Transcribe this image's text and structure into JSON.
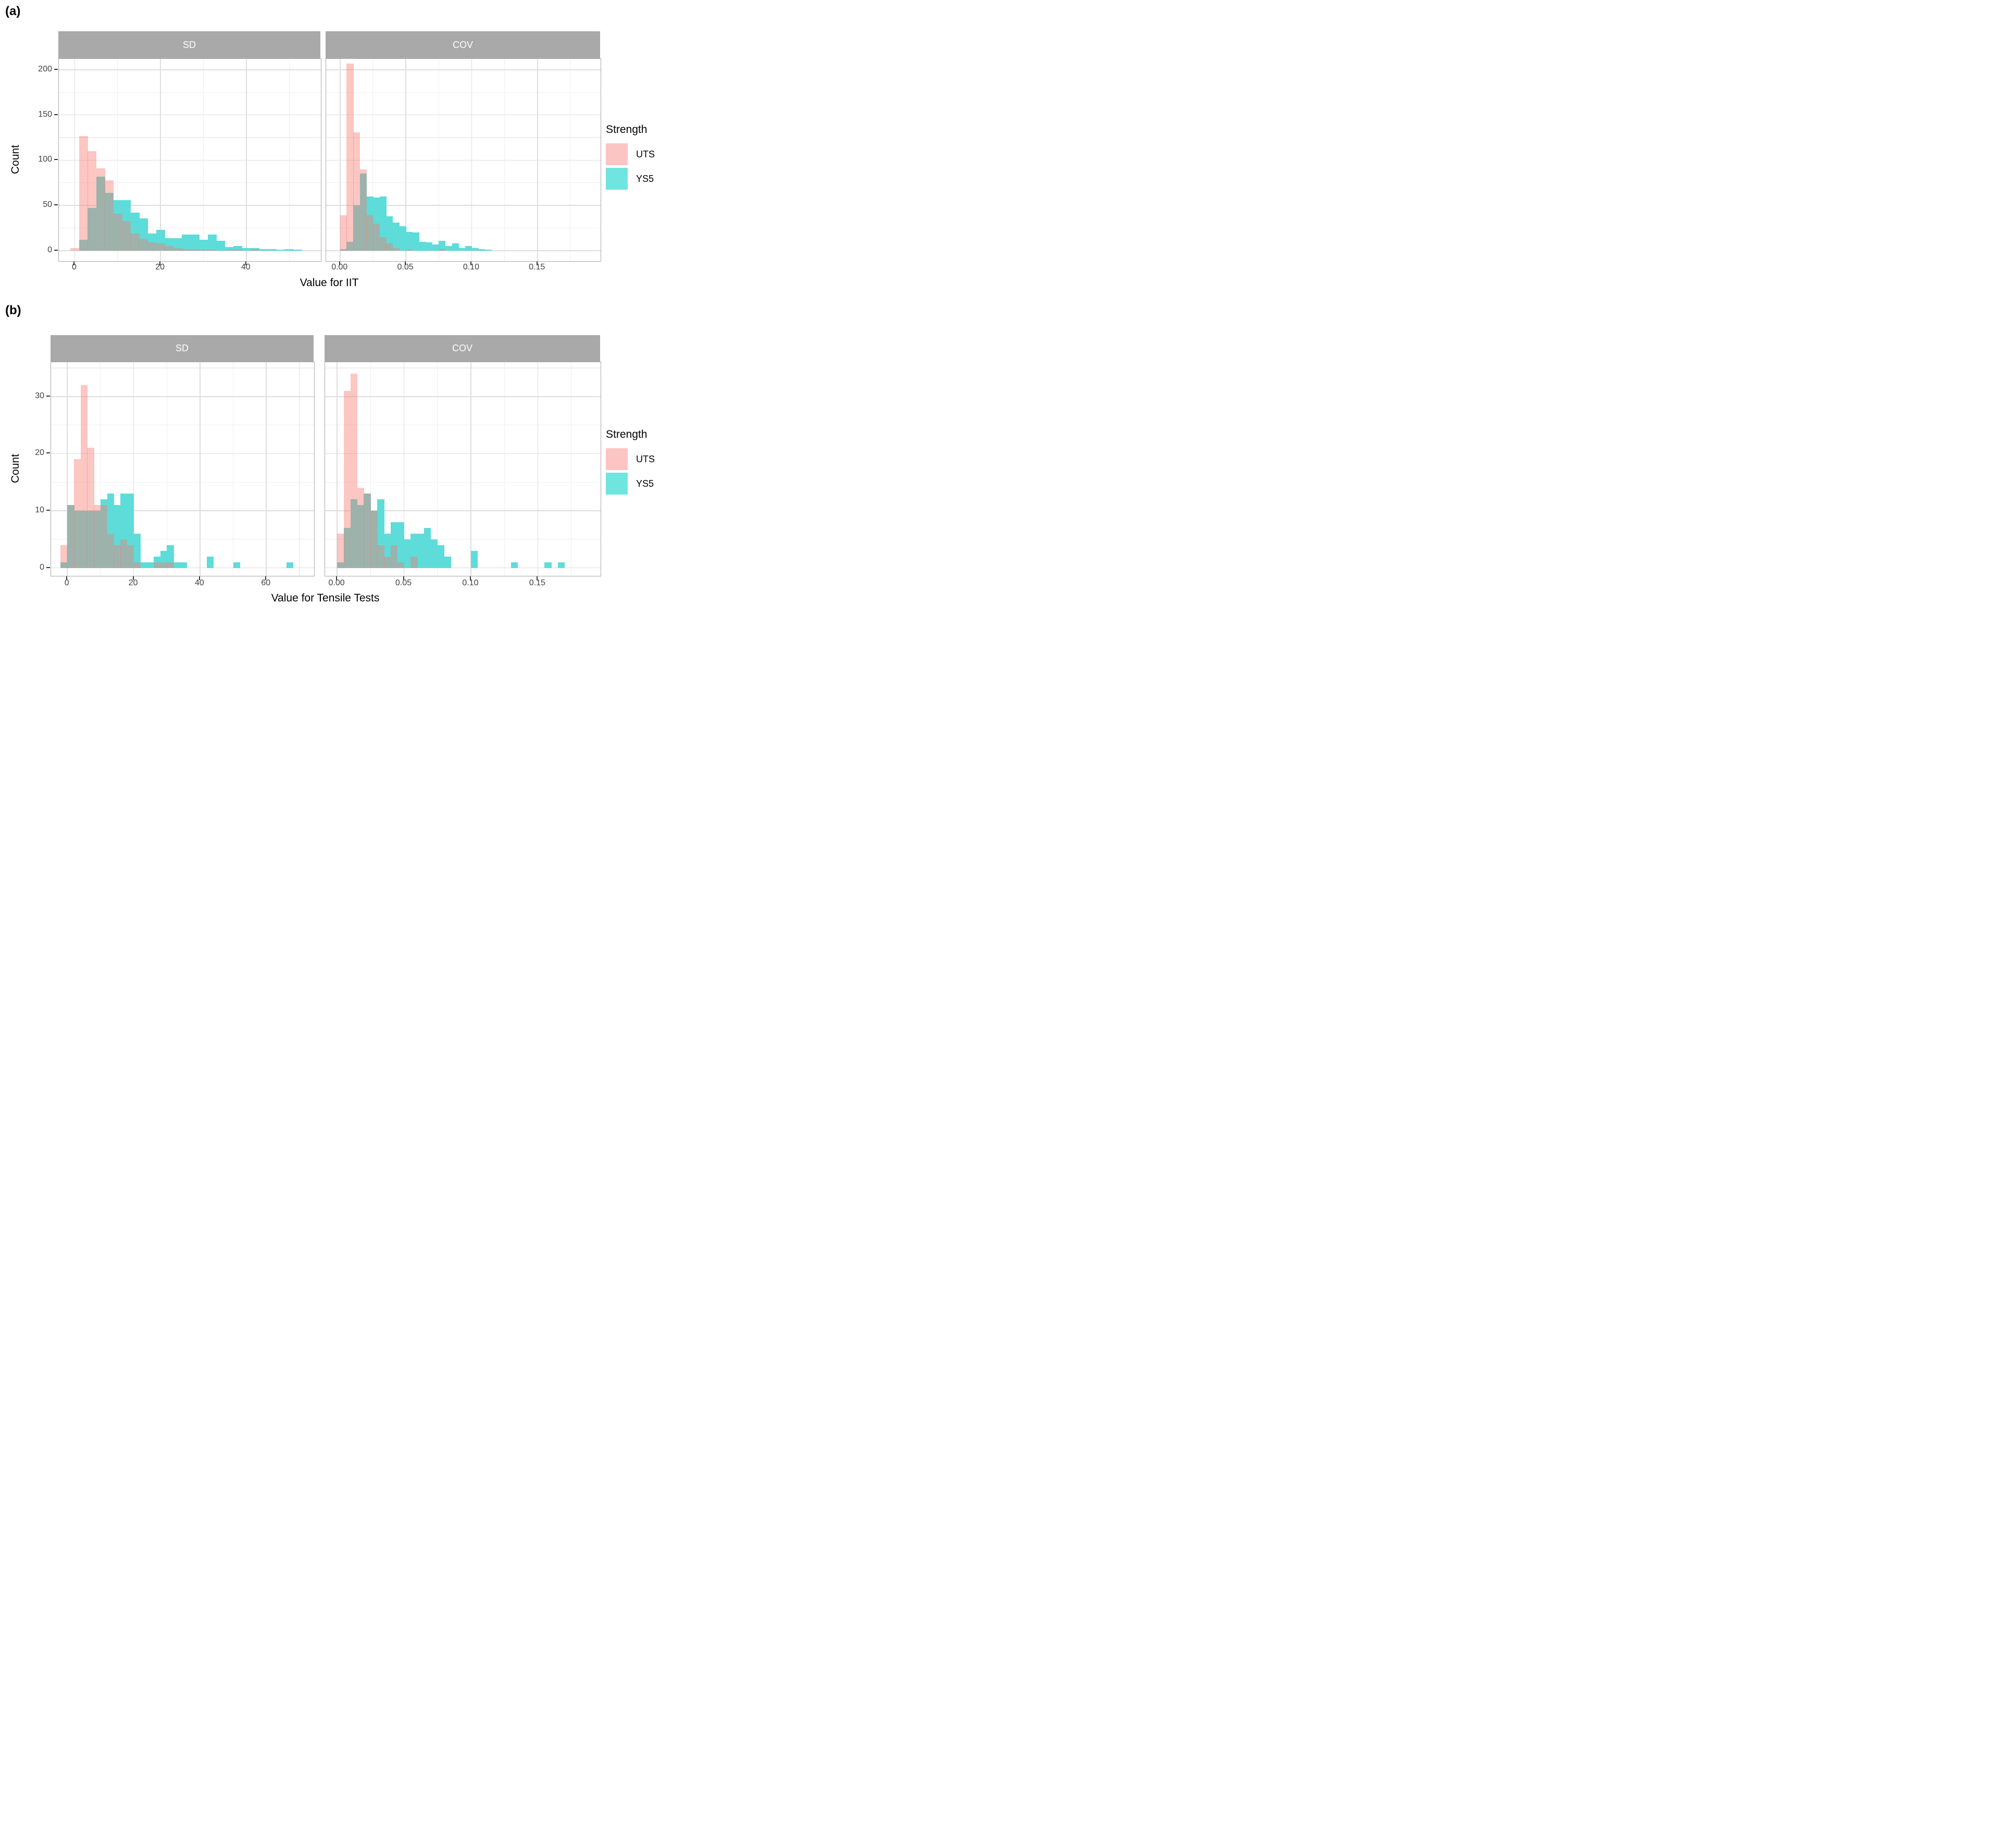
{
  "figure": {
    "sections": [
      {
        "label": "(a)"
      },
      {
        "label": "(b)"
      }
    ],
    "legend": {
      "title": "Strength",
      "items": [
        {
          "label": "UTS",
          "key_color": "#FBC5C3"
        },
        {
          "label": "YS5",
          "key_color": "#70E4DF"
        }
      ]
    },
    "colors": {
      "uts_fill": "rgba(248,118,109,0.42)",
      "ys5_fill": "#5EDCD9",
      "strip_bg": "#A9A9A9",
      "strip_text": "#FFFFFF",
      "grid_major": "#DEDEDE",
      "grid_minor": "#EFEFEF",
      "panel_border": "#A8A8A8",
      "axis_text": "#404040"
    }
  },
  "chart_data": [
    {
      "type": "histogram",
      "section": "a",
      "title": "",
      "xlabel": "Value for IIT",
      "ylabel": "Count",
      "legend_title": "Strength",
      "legend_position": "right",
      "grid": true,
      "ylim": [
        -11.5,
        212
      ],
      "yticks": [
        {
          "v": 0,
          "label": "0"
        },
        {
          "v": 50,
          "label": "50"
        },
        {
          "v": 100,
          "label": "100"
        },
        {
          "v": 150,
          "label": "150"
        },
        {
          "v": 200,
          "label": "200"
        }
      ],
      "yminor": [
        25,
        75,
        125,
        175
      ],
      "facets": [
        {
          "title": "SD",
          "xlim": [
            -3.7,
            57.4
          ],
          "bin_start": -1,
          "bin_width": 2,
          "xticks": [
            {
              "v": 0,
              "label": "0"
            },
            {
              "v": 20,
              "label": "20"
            },
            {
              "v": 40,
              "label": "40"
            }
          ],
          "xminor": [
            10,
            30,
            50
          ],
          "series": [
            {
              "name": "UTS",
              "counts": [
                3,
                127,
                110,
                91,
                78,
                41,
                33,
                19,
                13,
                9,
                8,
                5,
                3,
                2,
                2,
                1,
                1,
                0,
                1,
                1,
                0,
                2,
                0,
                0,
                0,
                0,
                0,
                0,
                0
              ]
            },
            {
              "name": "YS5",
              "counts": [
                0,
                12,
                47,
                82,
                64,
                56,
                56,
                42,
                36,
                19,
                23,
                14,
                14,
                18,
                18,
                12,
                18,
                11,
                4,
                5,
                3,
                3,
                2,
                2,
                1,
                2,
                1,
                0,
                0
              ]
            }
          ]
        },
        {
          "title": "COV",
          "xlim": [
            -0.0106,
            0.198
          ],
          "bin_start": 0,
          "bin_width": 0.005,
          "xticks": [
            {
              "v": 0,
              "label": "0.00"
            },
            {
              "v": 0.05,
              "label": "0.05"
            },
            {
              "v": 0.1,
              "label": "0.10"
            },
            {
              "v": 0.15,
              "label": "0.15"
            }
          ],
          "xminor": [
            0.025,
            0.075,
            0.125,
            0.175
          ],
          "series": [
            {
              "name": "UTS",
              "counts": [
                39,
                207,
                131,
                90,
                39,
                30,
                15,
                8,
                3,
                0,
                2,
                0,
                0,
                0,
                0,
                2,
                0,
                0,
                0,
                0,
                0,
                0,
                0,
                0
              ]
            },
            {
              "name": "YS5",
              "counts": [
                2,
                10,
                50,
                85,
                60,
                59,
                60,
                38,
                31,
                27,
                21,
                20,
                10,
                9,
                7,
                11,
                5,
                8,
                3,
                5,
                3,
                2,
                1,
                0
              ]
            }
          ]
        }
      ]
    },
    {
      "type": "histogram",
      "section": "b",
      "title": "",
      "xlabel": "Value for Tensile Tests",
      "ylabel": "Count",
      "legend_title": "Strength",
      "legend_position": "right",
      "grid": true,
      "ylim": [
        -1.4,
        36
      ],
      "yticks": [
        {
          "v": 0,
          "label": "0"
        },
        {
          "v": 10,
          "label": "10"
        },
        {
          "v": 20,
          "label": "20"
        },
        {
          "v": 30,
          "label": "30"
        }
      ],
      "yminor": [
        5,
        15,
        25,
        35
      ],
      "facets": [
        {
          "title": "SD",
          "xlim": [
            -4.9,
            74.4
          ],
          "bin_start": -2,
          "bin_width": 2,
          "xticks": [
            {
              "v": 0,
              "label": "0"
            },
            {
              "v": 20,
              "label": "20"
            },
            {
              "v": 40,
              "label": "40"
            },
            {
              "v": 60,
              "label": "60"
            }
          ],
          "xminor": [
            10,
            30,
            50,
            70
          ],
          "series": [
            {
              "name": "UTS",
              "counts": [
                4,
                11,
                19,
                32,
                21,
                11,
                11,
                6,
                4,
                5,
                4,
                1,
                0,
                0,
                1,
                1,
                1,
                0,
                0,
                0,
                0,
                0,
                0,
                0,
                0,
                0,
                0,
                0,
                0,
                0,
                0,
                0,
                0,
                0,
                0,
                0
              ]
            },
            {
              "name": "YS5",
              "counts": [
                1,
                11,
                10,
                10,
                10,
                10,
                12,
                13,
                11,
                13,
                13,
                6,
                1,
                1,
                2,
                3,
                4,
                1,
                1,
                0,
                0,
                0,
                2,
                0,
                0,
                0,
                1,
                0,
                0,
                0,
                0,
                0,
                0,
                0,
                1,
                0
              ]
            }
          ]
        },
        {
          "title": "COV",
          "xlim": [
            -0.009,
            0.197
          ],
          "bin_start": 0,
          "bin_width": 0.005,
          "xticks": [
            {
              "v": 0,
              "label": "0.00"
            },
            {
              "v": 0.05,
              "label": "0.05"
            },
            {
              "v": 0.1,
              "label": "0.10"
            },
            {
              "v": 0.15,
              "label": "0.15"
            }
          ],
          "xminor": [
            0.025,
            0.075,
            0.125,
            0.175
          ],
          "series": [
            {
              "name": "UTS",
              "counts": [
                6,
                31,
                34,
                14,
                13,
                10,
                4,
                2,
                4,
                1,
                0,
                2,
                0,
                0,
                0,
                0,
                0,
                0,
                0,
                0,
                0,
                0,
                0,
                0,
                0,
                0,
                0,
                0,
                0,
                0,
                0,
                0,
                0,
                0,
                0
              ]
            },
            {
              "name": "YS5",
              "counts": [
                1,
                7,
                12,
                11,
                13,
                10,
                12,
                6,
                8,
                8,
                5,
                6,
                6,
                7,
                5,
                4,
                2,
                0,
                0,
                0,
                3,
                0,
                0,
                0,
                0,
                0,
                1,
                0,
                0,
                0,
                0,
                1,
                0,
                1,
                0
              ]
            }
          ]
        }
      ]
    }
  ]
}
